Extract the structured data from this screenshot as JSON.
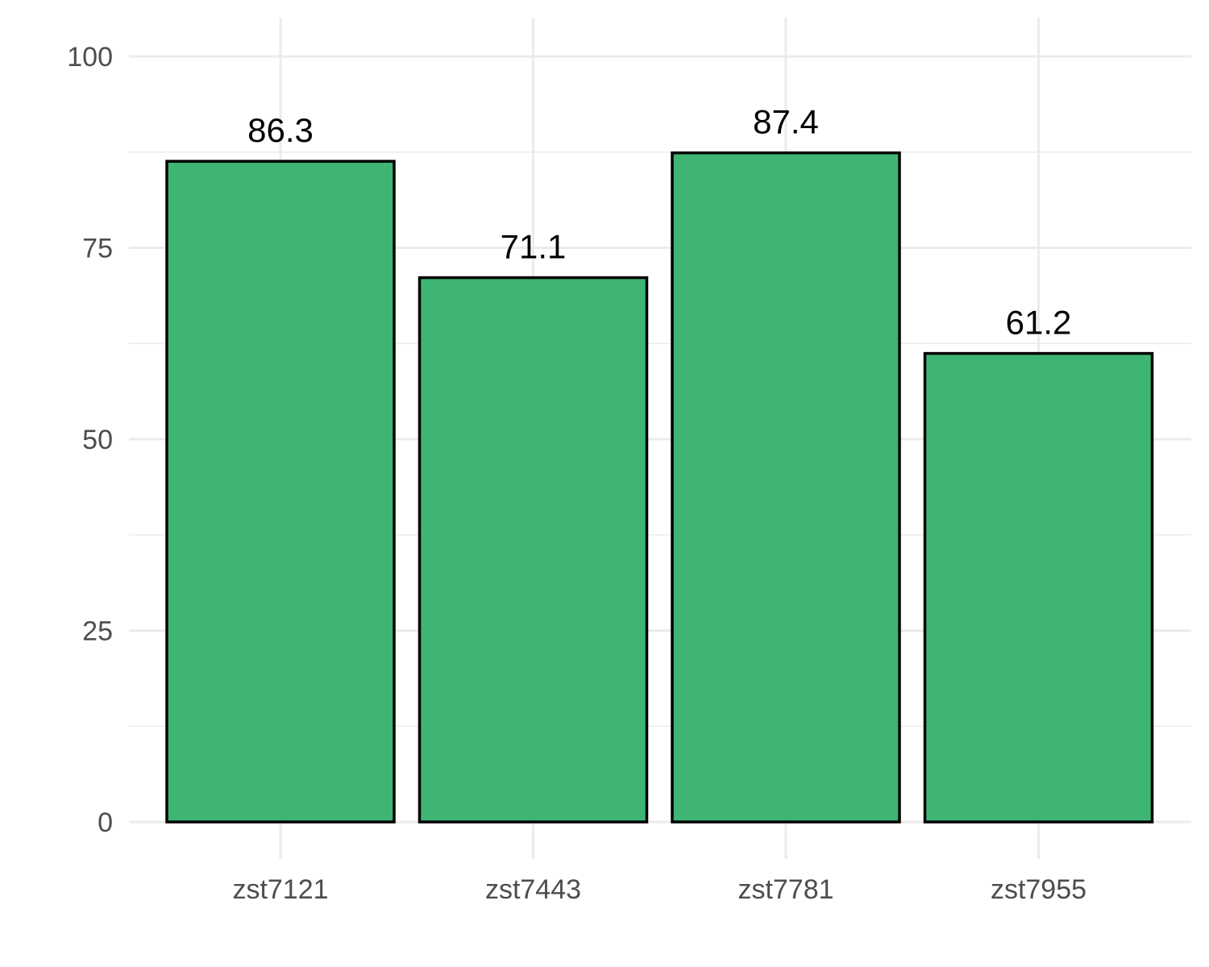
{
  "chart_data": {
    "type": "bar",
    "categories": [
      "zst7121",
      "zst7443",
      "zst7781",
      "zst7955"
    ],
    "values": [
      86.3,
      71.1,
      87.4,
      61.2
    ],
    "data_labels": [
      "86.3",
      "71.1",
      "87.4",
      "61.2"
    ],
    "y_ticks": [
      "0",
      "25",
      "50",
      "75",
      "100"
    ],
    "ylim": [
      0,
      100
    ],
    "title": "",
    "xlabel": "",
    "ylabel": "",
    "grid": true,
    "legend": "none",
    "bar_color": "#3eb573",
    "bar_outline_color": "#000000"
  }
}
